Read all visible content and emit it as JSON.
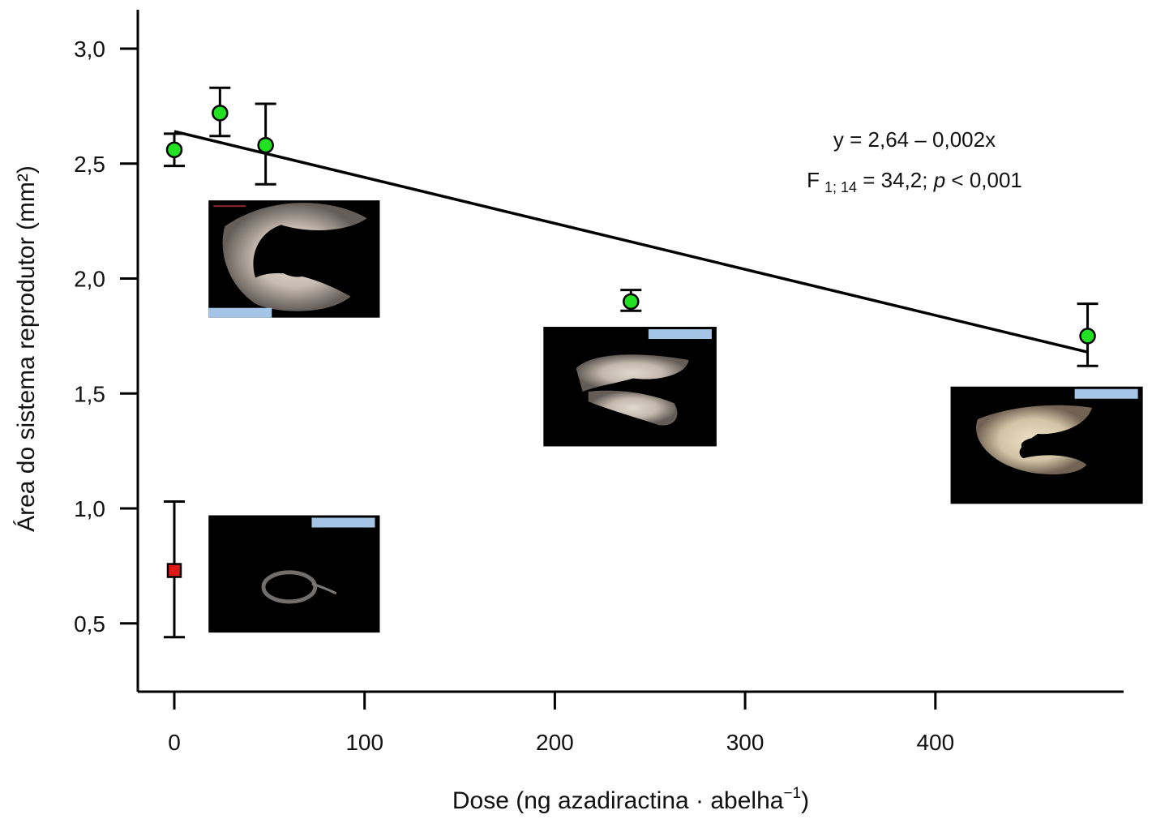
{
  "chart_data": {
    "type": "scatter",
    "xlabel": "Dose (ng azadiractina · abelha",
    "xlabel_superscript": "−1",
    "xlabel_close": ")",
    "ylabel": "Área do sistema reprodutor (mm²)",
    "xlim": [
      -20,
      498
    ],
    "ylim": [
      0.2,
      3.17
    ],
    "xticks": [
      0,
      100,
      200,
      300,
      400
    ],
    "xtick_labels": [
      "0",
      "100",
      "200",
      "300",
      "400"
    ],
    "yticks": [
      0.5,
      1.0,
      1.5,
      2.0,
      2.5,
      3.0
    ],
    "ytick_labels": [
      "0,5",
      "1,0",
      "1,5",
      "2,0",
      "2,5",
      "3,0"
    ],
    "grid": false,
    "series": [
      {
        "marker": "circle",
        "color": "#22e022",
        "points": [
          {
            "x": 0,
            "y": 2.56,
            "err_low": 2.49,
            "err_high": 2.63
          },
          {
            "x": 24,
            "y": 2.72,
            "err_low": 2.62,
            "err_high": 2.83
          },
          {
            "x": 48,
            "y": 2.58,
            "err_low": 2.41,
            "err_high": 2.76
          },
          {
            "x": 240,
            "y": 1.9,
            "err_low": 1.86,
            "err_high": 1.95
          },
          {
            "x": 480,
            "y": 1.75,
            "err_low": 1.62,
            "err_high": 1.89
          }
        ]
      },
      {
        "marker": "square",
        "color": "#e01818",
        "points": [
          {
            "x": 0,
            "y": 0.73,
            "err_low": 0.44,
            "err_high": 1.03
          }
        ]
      }
    ],
    "regression": {
      "intercept": 2.64,
      "slope": -0.002,
      "x_range": [
        0,
        480
      ],
      "equation_label": "y = 2,64 – 0,002x",
      "stat_prefix": "F",
      "stat_subscript": "1; 14",
      "stat_value": " = 34,2; ",
      "stat_p": "p",
      "stat_p_value": " < 0,001"
    },
    "insets": [
      {
        "name": "inset-photo-control",
        "x0": 18,
        "x1": 108,
        "y0": 2.34,
        "y1": 1.83,
        "scale_bar": "bottom-left"
      },
      {
        "name": "inset-photo-middle",
        "x0": 194,
        "x1": 285,
        "y0": 1.79,
        "y1": 1.27,
        "scale_bar": "top-right"
      },
      {
        "name": "inset-photo-high",
        "x0": 408,
        "x1": 509,
        "y0": 1.53,
        "y1": 1.02,
        "scale_bar": "top-right"
      },
      {
        "name": "inset-photo-treated",
        "x0": 18,
        "x1": 108,
        "y0": 0.97,
        "y1": 0.46,
        "scale_bar": "top-right"
      }
    ],
    "scale_bar_color": "#a5c5e6",
    "photo_background": "#000000"
  }
}
